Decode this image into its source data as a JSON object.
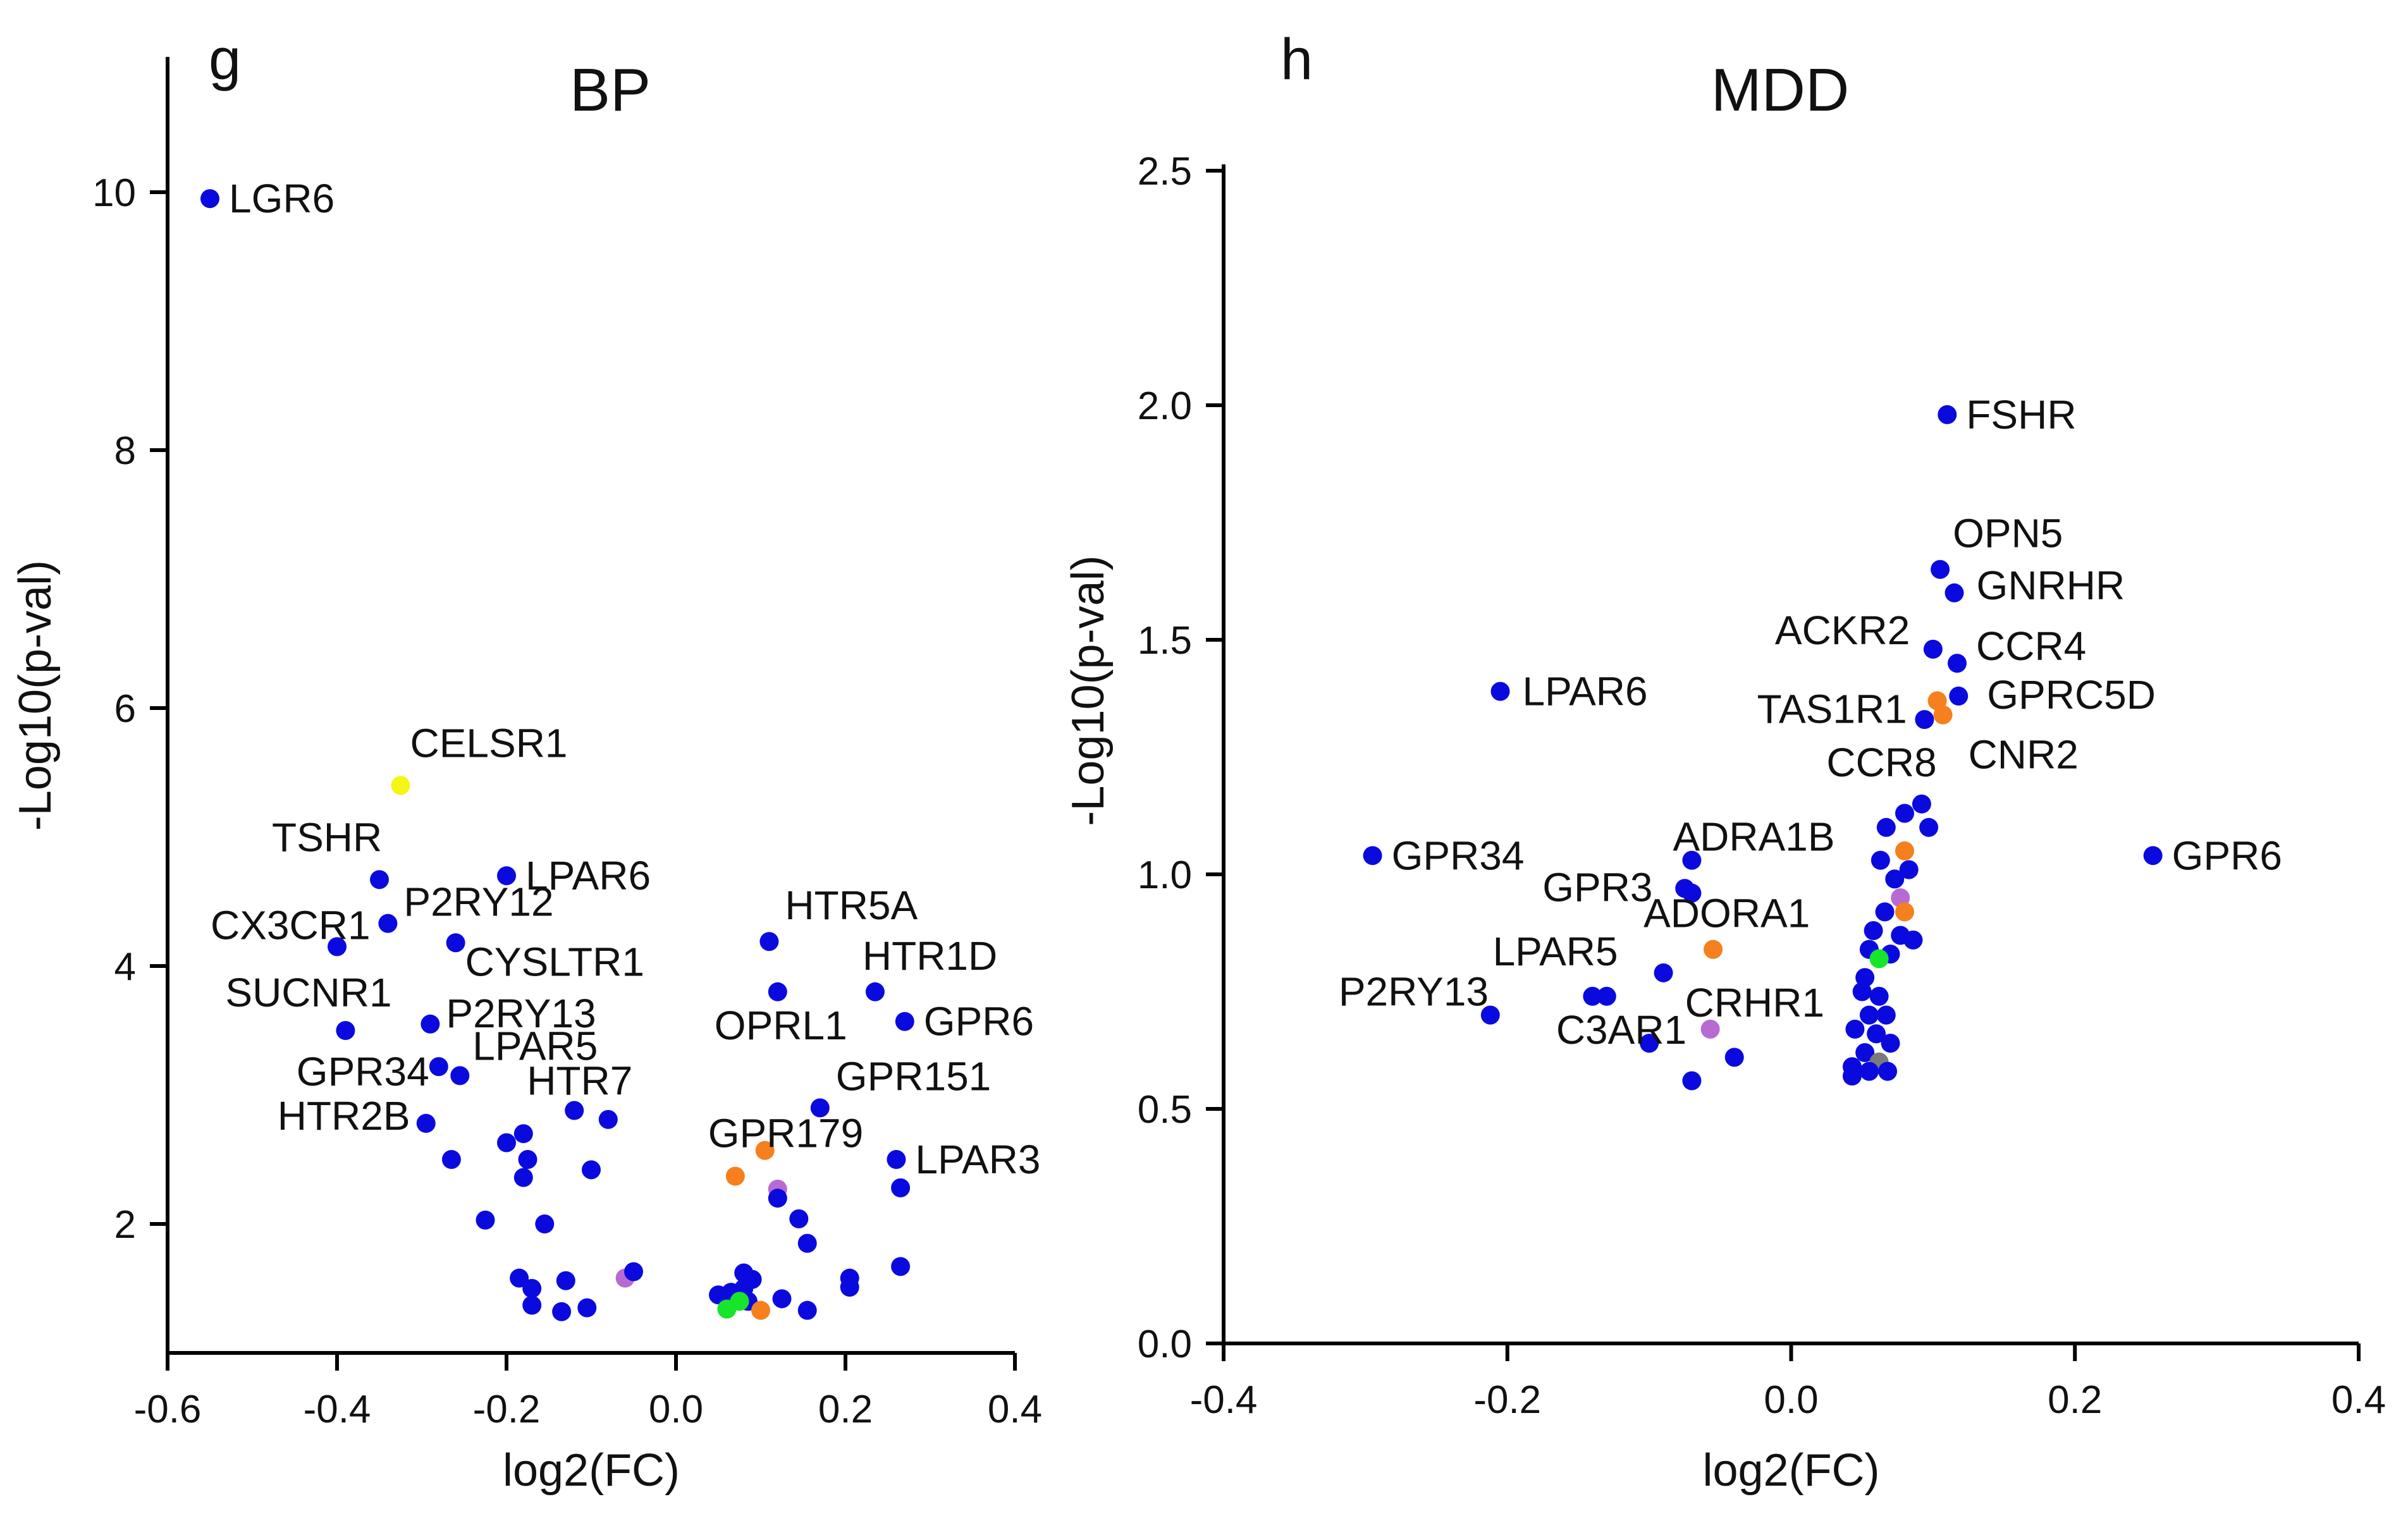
{
  "colors": {
    "blue": "#0a0adf",
    "orange": "#f5801d",
    "violet": "#b86ad3",
    "green": "#16e52a",
    "yellow": "#f5f516",
    "gray": "#7a7a7a"
  },
  "chart_data": [
    {
      "type": "scatter",
      "panel": "g",
      "title": "BP",
      "xlabel": "log2(FC)",
      "ylabel": "-Log10(p-val)",
      "xlim": [
        -0.6,
        0.4
      ],
      "ylim": [
        1.0,
        11.0
      ],
      "xticks": [
        -0.6,
        -0.4,
        -0.2,
        0.0,
        0.2,
        0.4
      ],
      "xtick_labels": [
        "-0.6",
        "-0.4",
        "-0.2",
        "0.0",
        "0.2",
        "0.4"
      ],
      "yticks": [
        2,
        4,
        6,
        8,
        10
      ],
      "ytick_labels": [
        "2",
        "4",
        "6",
        "8",
        "10"
      ],
      "grid": false,
      "points": [
        {
          "x": -0.55,
          "y": 9.95,
          "color": "blue",
          "label": "LGR6"
        },
        {
          "x": -0.325,
          "y": 5.4,
          "color": "yellow",
          "label": "CELSR1"
        },
        {
          "x": -0.35,
          "y": 4.67,
          "color": "blue",
          "label": "TSHR"
        },
        {
          "x": -0.2,
          "y": 4.7,
          "color": "blue",
          "label": "LPAR6"
        },
        {
          "x": -0.34,
          "y": 4.33,
          "color": "blue",
          "label": "P2RY12"
        },
        {
          "x": -0.4,
          "y": 4.15,
          "color": "blue",
          "label": "CX3CR1"
        },
        {
          "x": -0.26,
          "y": 4.18,
          "color": "blue",
          "label": "CYSLTR1"
        },
        {
          "x": -0.39,
          "y": 3.5,
          "color": "blue",
          "label": "SUCNR1"
        },
        {
          "x": -0.29,
          "y": 3.55,
          "color": "blue",
          "label": "P2RY13"
        },
        {
          "x": -0.28,
          "y": 3.22,
          "color": "blue",
          "label": "GPR34"
        },
        {
          "x": -0.255,
          "y": 3.15,
          "color": "blue",
          "label": "LPAR5"
        },
        {
          "x": -0.295,
          "y": 2.78,
          "color": "blue",
          "label": "HTR2B"
        },
        {
          "x": -0.12,
          "y": 2.88,
          "color": "blue",
          "label": "HTR7"
        },
        {
          "x": 0.11,
          "y": 4.19,
          "color": "blue",
          "label": "HTR5A"
        },
        {
          "x": 0.235,
          "y": 3.8,
          "color": "blue",
          "label": "HTR1D"
        },
        {
          "x": 0.12,
          "y": 3.8,
          "color": "blue",
          "label": "OPRL1"
        },
        {
          "x": 0.27,
          "y": 3.57,
          "color": "blue",
          "label": "GPR6"
        },
        {
          "x": 0.17,
          "y": 2.9,
          "color": "blue",
          "label": "GPR151"
        },
        {
          "x": 0.105,
          "y": 2.57,
          "color": "orange",
          "label": "GPR179"
        },
        {
          "x": 0.26,
          "y": 2.5,
          "color": "blue",
          "label": "LPAR3"
        },
        {
          "x": -0.08,
          "y": 2.81,
          "color": "blue",
          "label": ""
        },
        {
          "x": -0.18,
          "y": 2.7,
          "color": "blue",
          "label": ""
        },
        {
          "x": -0.2,
          "y": 2.63,
          "color": "blue",
          "label": ""
        },
        {
          "x": -0.175,
          "y": 2.5,
          "color": "blue",
          "label": ""
        },
        {
          "x": -0.265,
          "y": 2.5,
          "color": "blue",
          "label": ""
        },
        {
          "x": -0.18,
          "y": 2.36,
          "color": "blue",
          "label": ""
        },
        {
          "x": -0.1,
          "y": 2.42,
          "color": "blue",
          "label": ""
        },
        {
          "x": -0.225,
          "y": 2.03,
          "color": "blue",
          "label": ""
        },
        {
          "x": -0.155,
          "y": 2.0,
          "color": "blue",
          "label": ""
        },
        {
          "x": -0.185,
          "y": 1.58,
          "color": "blue",
          "label": ""
        },
        {
          "x": -0.17,
          "y": 1.5,
          "color": "blue",
          "label": ""
        },
        {
          "x": -0.13,
          "y": 1.56,
          "color": "blue",
          "label": ""
        },
        {
          "x": -0.17,
          "y": 1.37,
          "color": "blue",
          "label": ""
        },
        {
          "x": -0.135,
          "y": 1.32,
          "color": "blue",
          "label": ""
        },
        {
          "x": -0.105,
          "y": 1.35,
          "color": "blue",
          "label": ""
        },
        {
          "x": -0.06,
          "y": 1.58,
          "color": "violet",
          "label": ""
        },
        {
          "x": -0.05,
          "y": 1.63,
          "color": "blue",
          "label": ""
        },
        {
          "x": 0.07,
          "y": 2.37,
          "color": "orange",
          "label": ""
        },
        {
          "x": 0.12,
          "y": 2.27,
          "color": "violet",
          "label": ""
        },
        {
          "x": 0.12,
          "y": 2.2,
          "color": "blue",
          "label": ""
        },
        {
          "x": 0.145,
          "y": 2.04,
          "color": "blue",
          "label": ""
        },
        {
          "x": 0.155,
          "y": 1.85,
          "color": "blue",
          "label": ""
        },
        {
          "x": 0.265,
          "y": 2.28,
          "color": "blue",
          "label": ""
        },
        {
          "x": 0.265,
          "y": 1.67,
          "color": "blue",
          "label": ""
        },
        {
          "x": 0.205,
          "y": 1.58,
          "color": "blue",
          "label": ""
        },
        {
          "x": 0.205,
          "y": 1.51,
          "color": "blue",
          "label": ""
        },
        {
          "x": 0.08,
          "y": 1.62,
          "color": "blue",
          "label": ""
        },
        {
          "x": 0.09,
          "y": 1.57,
          "color": "blue",
          "label": ""
        },
        {
          "x": 0.08,
          "y": 1.5,
          "color": "blue",
          "label": ""
        },
        {
          "x": 0.05,
          "y": 1.45,
          "color": "blue",
          "label": ""
        },
        {
          "x": 0.065,
          "y": 1.47,
          "color": "blue",
          "label": ""
        },
        {
          "x": 0.085,
          "y": 1.4,
          "color": "blue",
          "label": ""
        },
        {
          "x": 0.125,
          "y": 1.42,
          "color": "blue",
          "label": ""
        },
        {
          "x": 0.155,
          "y": 1.33,
          "color": "blue",
          "label": ""
        },
        {
          "x": 0.075,
          "y": 1.4,
          "color": "green",
          "label": ""
        },
        {
          "x": 0.06,
          "y": 1.34,
          "color": "green",
          "label": ""
        },
        {
          "x": 0.1,
          "y": 1.33,
          "color": "orange",
          "label": ""
        }
      ]
    },
    {
      "type": "scatter",
      "panel": "h",
      "title": "MDD",
      "xlabel": "log2(FC)",
      "ylabel": "-Log10(p-val)",
      "xlim": [
        -0.4,
        0.4
      ],
      "ylim": [
        0.0,
        2.5
      ],
      "xticks": [
        -0.4,
        -0.2,
        0.0,
        0.2,
        0.4
      ],
      "xtick_labels": [
        "-0.4",
        "-0.2",
        "0.0",
        "0.2",
        "0.4"
      ],
      "yticks": [
        0.0,
        0.5,
        1.0,
        1.5,
        2.0,
        2.5
      ],
      "ytick_labels": [
        "0.0",
        "0.5",
        "1.0",
        "1.5",
        "2.0",
        "2.5"
      ],
      "grid": false,
      "points": [
        {
          "x": 0.11,
          "y": 1.98,
          "color": "blue",
          "label": "FSHR"
        },
        {
          "x": 0.105,
          "y": 1.65,
          "color": "blue",
          "label": "OPN5"
        },
        {
          "x": 0.115,
          "y": 1.6,
          "color": "blue",
          "label": "GNRHR"
        },
        {
          "x": 0.1,
          "y": 1.48,
          "color": "blue",
          "label": "ACKR2"
        },
        {
          "x": 0.117,
          "y": 1.45,
          "color": "blue",
          "label": "CCR4"
        },
        {
          "x": 0.103,
          "y": 1.37,
          "color": "orange",
          "label": "TAS1R1"
        },
        {
          "x": 0.118,
          "y": 1.38,
          "color": "blue",
          "label": "GPRC5D"
        },
        {
          "x": 0.094,
          "y": 1.33,
          "color": "blue",
          "label": "CCR8"
        },
        {
          "x": 0.107,
          "y": 1.34,
          "color": "orange",
          "label": "CNR2"
        },
        {
          "x": -0.205,
          "y": 1.39,
          "color": "blue",
          "label": "LPAR6"
        },
        {
          "x": -0.295,
          "y": 1.04,
          "color": "blue",
          "label": "GPR34"
        },
        {
          "x": 0.255,
          "y": 1.04,
          "color": "blue",
          "label": "GPR6"
        },
        {
          "x": -0.07,
          "y": 1.03,
          "color": "blue",
          "label": "ADRA1B"
        },
        {
          "x": -0.075,
          "y": 0.97,
          "color": "blue",
          "label": "GPR3"
        },
        {
          "x": -0.055,
          "y": 0.84,
          "color": "orange",
          "label": "ADORA1"
        },
        {
          "x": -0.09,
          "y": 0.79,
          "color": "blue",
          "label": "LPAR5"
        },
        {
          "x": -0.212,
          "y": 0.7,
          "color": "blue",
          "label": "P2RY13"
        },
        {
          "x": -0.13,
          "y": 0.74,
          "color": "blue",
          "label": "C3AR1"
        },
        {
          "x": -0.057,
          "y": 0.67,
          "color": "violet",
          "label": "CRHR1"
        },
        {
          "x": -0.07,
          "y": 0.96,
          "color": "blue",
          "label": ""
        },
        {
          "x": -0.14,
          "y": 0.74,
          "color": "blue",
          "label": ""
        },
        {
          "x": -0.1,
          "y": 0.64,
          "color": "blue",
          "label": ""
        },
        {
          "x": -0.07,
          "y": 0.56,
          "color": "blue",
          "label": ""
        },
        {
          "x": -0.04,
          "y": 0.61,
          "color": "blue",
          "label": ""
        },
        {
          "x": 0.092,
          "y": 1.15,
          "color": "blue",
          "label": ""
        },
        {
          "x": 0.08,
          "y": 1.13,
          "color": "blue",
          "label": ""
        },
        {
          "x": 0.067,
          "y": 1.1,
          "color": "blue",
          "label": ""
        },
        {
          "x": 0.097,
          "y": 1.1,
          "color": "blue",
          "label": ""
        },
        {
          "x": 0.08,
          "y": 1.05,
          "color": "orange",
          "label": ""
        },
        {
          "x": 0.063,
          "y": 1.03,
          "color": "blue",
          "label": ""
        },
        {
          "x": 0.083,
          "y": 1.01,
          "color": "blue",
          "label": ""
        },
        {
          "x": 0.073,
          "y": 0.99,
          "color": "blue",
          "label": ""
        },
        {
          "x": 0.077,
          "y": 0.95,
          "color": "violet",
          "label": ""
        },
        {
          "x": 0.066,
          "y": 0.92,
          "color": "blue",
          "label": ""
        },
        {
          "x": 0.08,
          "y": 0.92,
          "color": "orange",
          "label": ""
        },
        {
          "x": 0.058,
          "y": 0.88,
          "color": "blue",
          "label": ""
        },
        {
          "x": 0.077,
          "y": 0.87,
          "color": "blue",
          "label": ""
        },
        {
          "x": 0.086,
          "y": 0.86,
          "color": "blue",
          "label": ""
        },
        {
          "x": 0.055,
          "y": 0.84,
          "color": "blue",
          "label": ""
        },
        {
          "x": 0.07,
          "y": 0.83,
          "color": "blue",
          "label": ""
        },
        {
          "x": 0.062,
          "y": 0.82,
          "color": "green",
          "label": ""
        },
        {
          "x": 0.052,
          "y": 0.78,
          "color": "blue",
          "label": ""
        },
        {
          "x": 0.05,
          "y": 0.75,
          "color": "blue",
          "label": ""
        },
        {
          "x": 0.062,
          "y": 0.74,
          "color": "blue",
          "label": ""
        },
        {
          "x": 0.055,
          "y": 0.7,
          "color": "blue",
          "label": ""
        },
        {
          "x": 0.067,
          "y": 0.7,
          "color": "blue",
          "label": ""
        },
        {
          "x": 0.045,
          "y": 0.67,
          "color": "blue",
          "label": ""
        },
        {
          "x": 0.06,
          "y": 0.66,
          "color": "blue",
          "label": ""
        },
        {
          "x": 0.07,
          "y": 0.64,
          "color": "blue",
          "label": ""
        },
        {
          "x": 0.052,
          "y": 0.62,
          "color": "blue",
          "label": ""
        },
        {
          "x": 0.062,
          "y": 0.6,
          "color": "gray",
          "label": ""
        },
        {
          "x": 0.043,
          "y": 0.59,
          "color": "blue",
          "label": ""
        },
        {
          "x": 0.055,
          "y": 0.58,
          "color": "blue",
          "label": ""
        },
        {
          "x": 0.068,
          "y": 0.58,
          "color": "blue",
          "label": ""
        },
        {
          "x": 0.043,
          "y": 0.57,
          "color": "blue",
          "label": ""
        }
      ]
    }
  ]
}
